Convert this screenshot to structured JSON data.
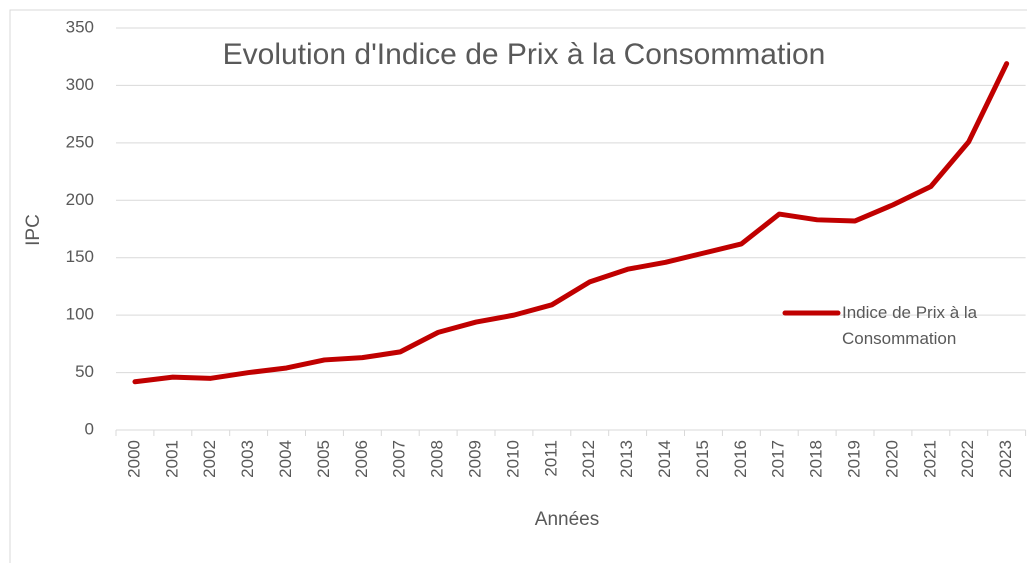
{
  "chart_data": {
    "type": "line",
    "title": "Evolution d'Indice de Prix à la Consommation",
    "x_label": "Années",
    "y_label": "IPC",
    "categories": [
      "2000",
      "2001",
      "2002",
      "2003",
      "2004",
      "2005",
      "2006",
      "2007",
      "2008",
      "2009",
      "2010",
      "2011",
      "2012",
      "2013",
      "2014",
      "2015",
      "2016",
      "2017",
      "2018",
      "2019",
      "2020",
      "2021",
      "2022",
      "2023"
    ],
    "series": [
      {
        "name": "Indice de Prix à la Consommation",
        "color": "#c00000",
        "values": [
          42,
          46,
          45,
          50,
          54,
          61,
          63,
          68,
          85,
          94,
          100,
          109,
          129,
          140,
          146,
          154,
          162,
          188,
          183,
          182,
          196,
          212,
          251,
          319
        ]
      }
    ],
    "ylim": [
      0,
      350
    ],
    "yticks": [
      0,
      50,
      100,
      150,
      200,
      250,
      300,
      350
    ],
    "grid": true,
    "legend": "right"
  }
}
